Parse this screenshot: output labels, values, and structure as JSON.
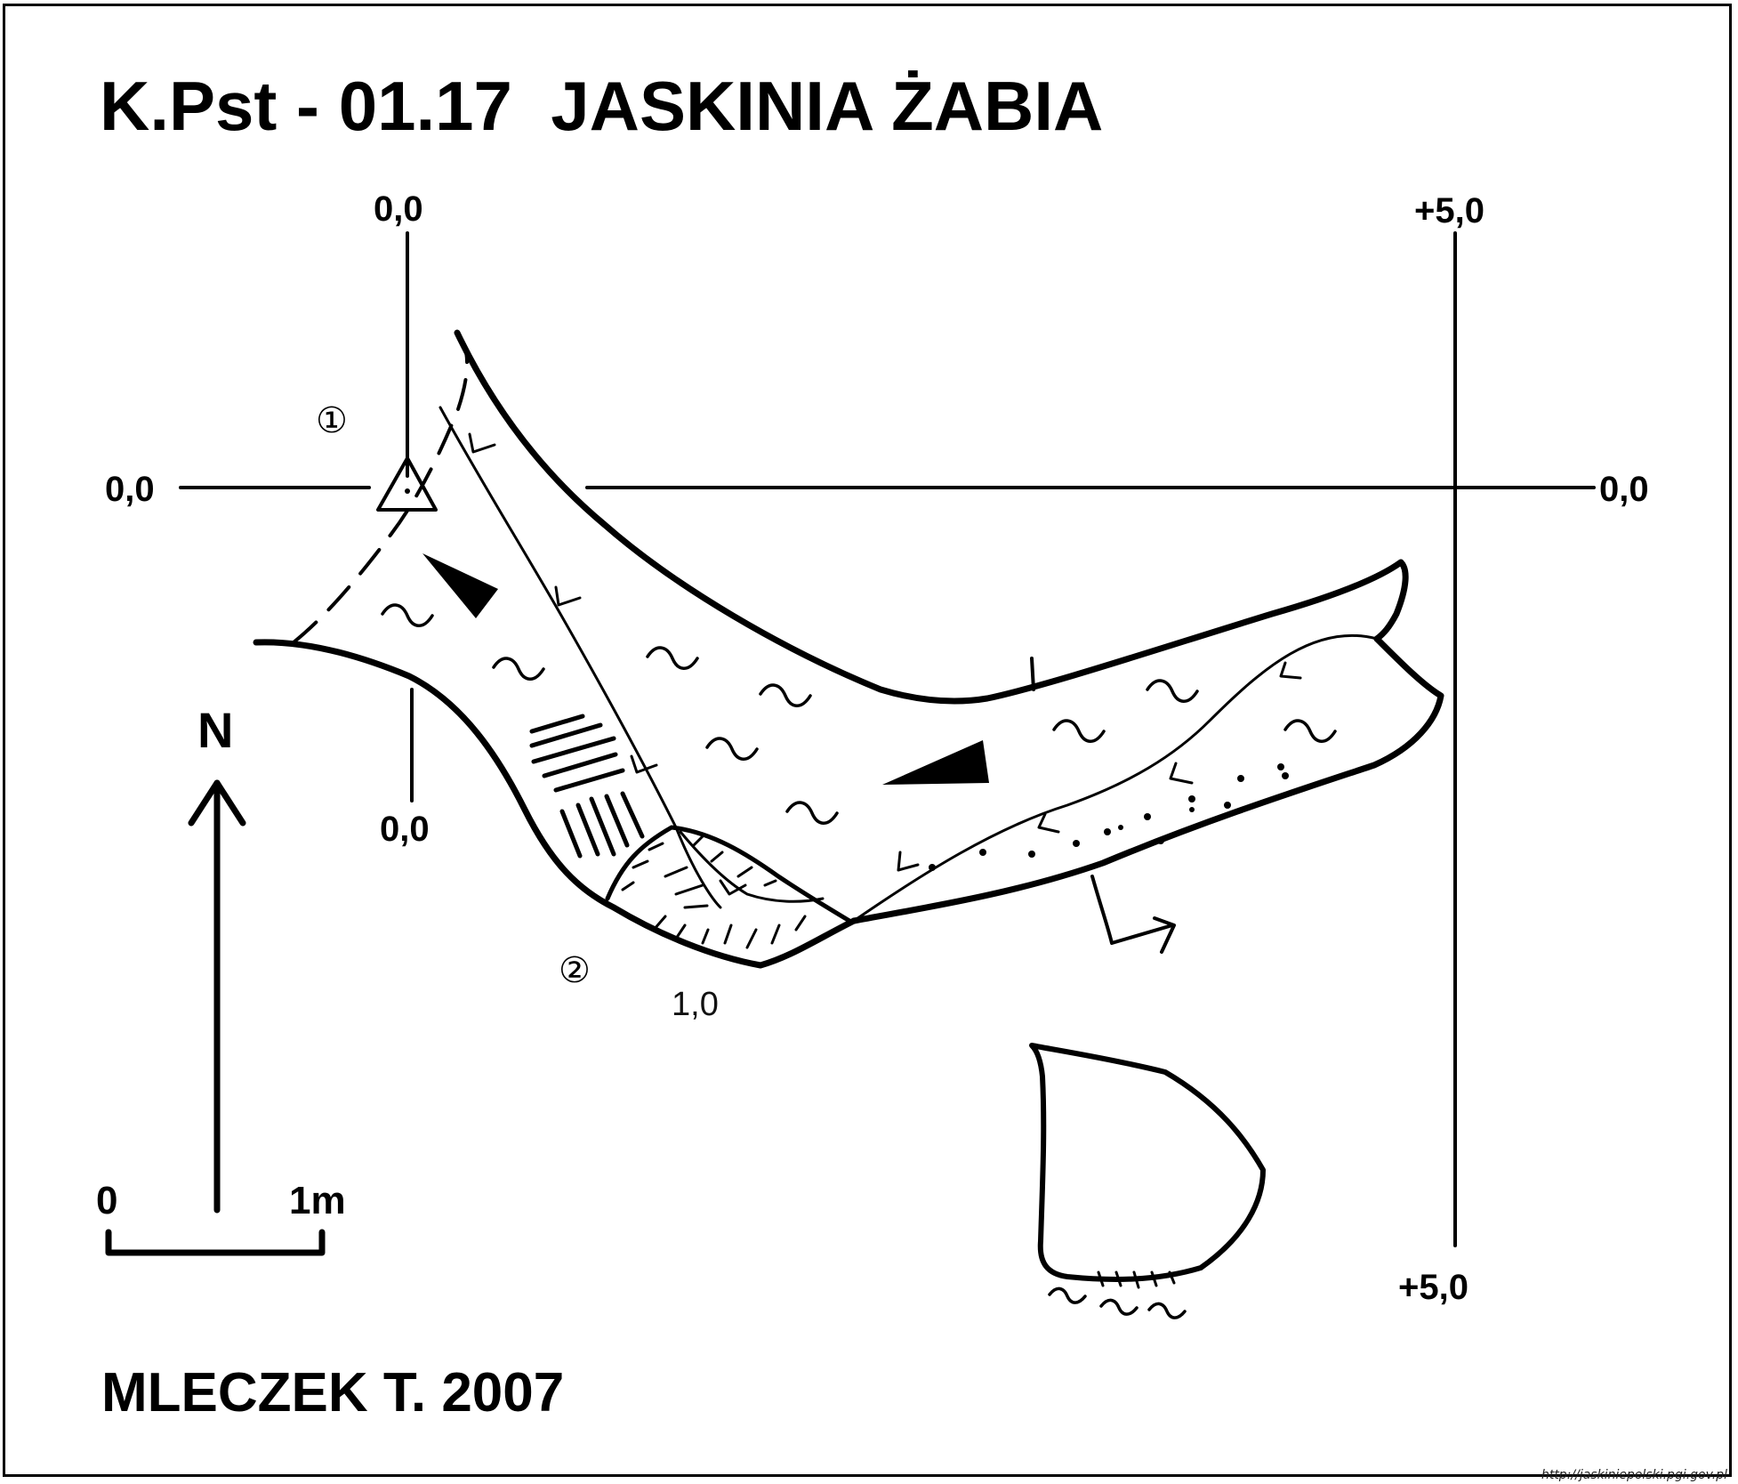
{
  "map": {
    "title": "K.Pst - 01.17  JASKINIA ŻABIA",
    "author": "MLECZEK T. 2007",
    "source_url": "http://jaskiniepolski.pgi.gov.pl",
    "north_label": "N",
    "scale": {
      "start": "0",
      "end": "1m"
    },
    "grid_labels": {
      "top_left": "0,0",
      "top_right": "+5,0",
      "left": "0,0",
      "right": "0,0",
      "bottom_left": "0,0",
      "bottom_right": "+5,0"
    },
    "stations": {
      "entrance": "①",
      "end": "②"
    },
    "depth_label": "1,0",
    "colors": {
      "ink": "#000000",
      "paper": "#ffffff"
    }
  }
}
